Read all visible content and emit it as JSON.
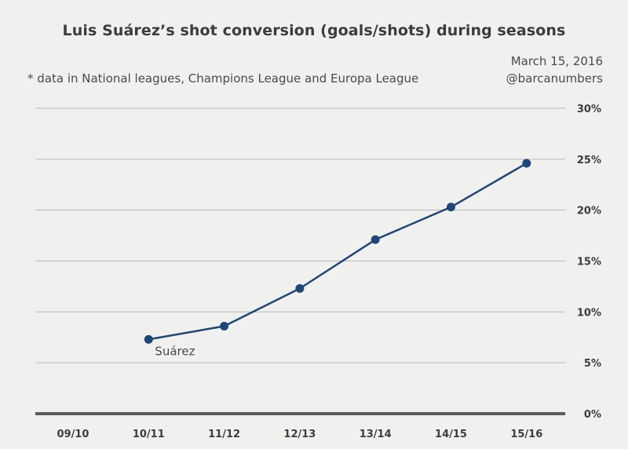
{
  "header": {
    "title": "Luis Suárez’s shot conversion (goals/shots) during seasons",
    "subtitle": "* data in National leagues, Champions League and Europa League",
    "date": "March 15, 2016",
    "handle": "@barcanumbers"
  },
  "chart_data": {
    "type": "line",
    "title": "Luis Suárez’s shot conversion (goals/shots) during seasons",
    "subtitle": "* data in National leagues, Champions League and Europa League",
    "categories": [
      "09/10",
      "10/11",
      "11/12",
      "12/13",
      "13/14",
      "14/15",
      "15/16"
    ],
    "series": [
      {
        "name": "Suárez",
        "color": "#1f4678",
        "values": [
          null,
          7.3,
          8.6,
          12.3,
          17.1,
          20.3,
          24.6
        ]
      }
    ],
    "y_tick_labels": [
      "0%",
      "5%",
      "10%",
      "15%",
      "20%",
      "25%",
      "30%"
    ],
    "y_unit": "%",
    "ylim": [
      0,
      30
    ],
    "y_axis_side": "right",
    "grid": true,
    "xlabel": "",
    "ylabel": ""
  }
}
